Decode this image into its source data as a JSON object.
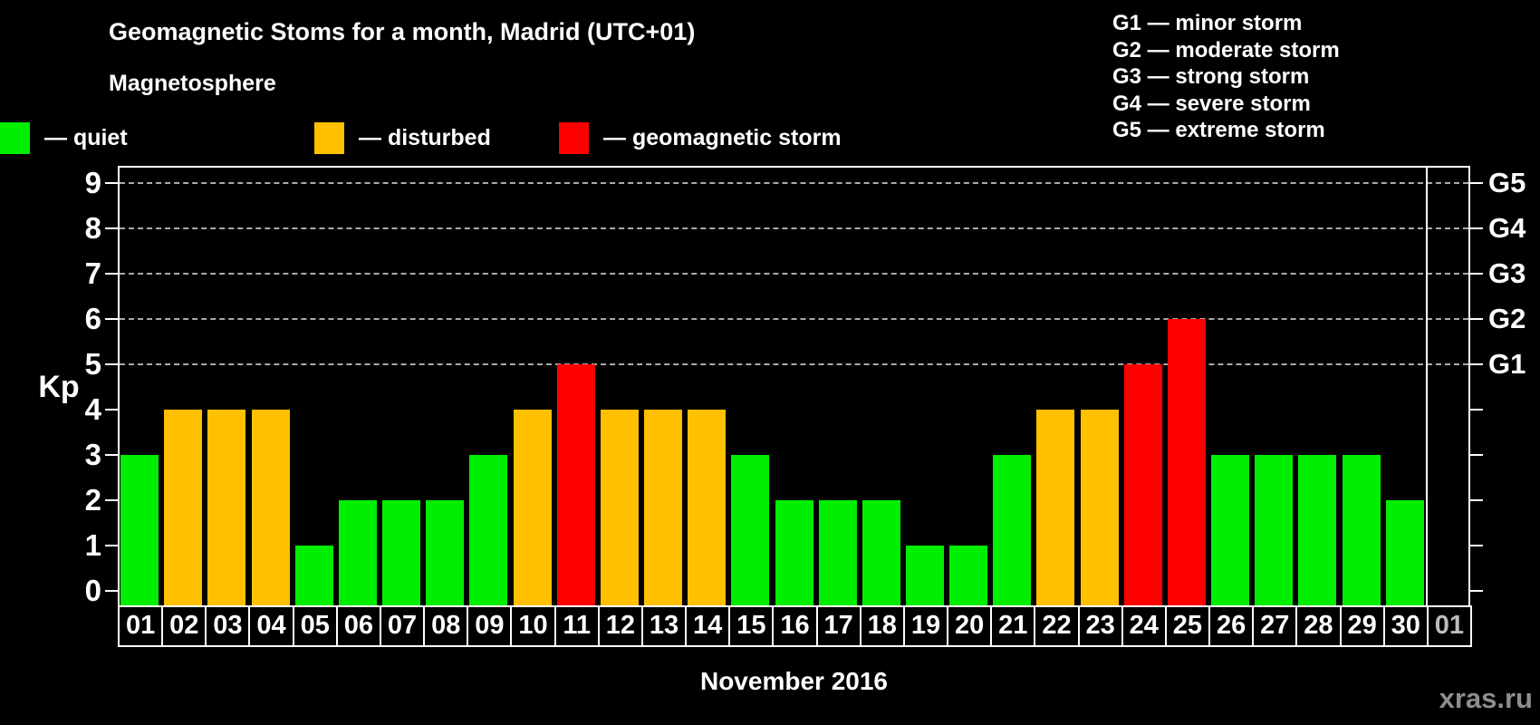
{
  "title": "Geomagnetic Stoms for a month, Madrid (UTC+01)",
  "legend": {
    "heading": "Magnetosphere",
    "items": [
      {
        "label": "— quiet",
        "color": "#00ee00"
      },
      {
        "label": "— disturbed",
        "color": "#ffc000"
      },
      {
        "label": "— geomagnetic storm",
        "color": "#ff0000"
      }
    ]
  },
  "g_legend": [
    "G1 — minor storm",
    "G2 — moderate storm",
    "G3 — strong storm",
    "G4 — severe storm",
    "G5 — extreme storm"
  ],
  "watermark": "xras.ru",
  "chart_data": {
    "type": "bar",
    "title": "Geomagnetic Stoms for a month, Madrid (UTC+01)",
    "xlabel": "November 2016",
    "ylabel": "Kp",
    "ylim": [
      0,
      9.36
    ],
    "y_ticks": [
      "0",
      "1",
      "2",
      "3",
      "4",
      "5",
      "6",
      "7",
      "8",
      "9"
    ],
    "grid": {
      "style": "dashed",
      "levels": [
        5,
        6,
        7,
        8,
        9
      ],
      "color": "#aaaaaa"
    },
    "right_axis": {
      "labels": [
        "G1",
        "G2",
        "G3",
        "G4",
        "G5"
      ],
      "levels": [
        5,
        6,
        7,
        8,
        9
      ]
    },
    "legend_position": "top-left",
    "categories": [
      "01",
      "02",
      "03",
      "04",
      "05",
      "06",
      "07",
      "08",
      "09",
      "10",
      "11",
      "12",
      "13",
      "14",
      "15",
      "16",
      "17",
      "18",
      "19",
      "20",
      "21",
      "22",
      "23",
      "24",
      "25",
      "26",
      "27",
      "28",
      "29",
      "30",
      "01"
    ],
    "month_day_count": 30,
    "values": [
      3,
      4,
      4,
      4,
      1,
      2,
      2,
      2,
      3,
      4,
      5,
      4,
      4,
      4,
      3,
      2,
      2,
      2,
      1,
      1,
      3,
      4,
      4,
      5,
      6,
      3,
      3,
      3,
      3,
      2,
      null
    ],
    "statuses": [
      "quiet",
      "disturbed",
      "disturbed",
      "disturbed",
      "quiet",
      "quiet",
      "quiet",
      "quiet",
      "quiet",
      "disturbed",
      "storm",
      "disturbed",
      "disturbed",
      "disturbed",
      "quiet",
      "quiet",
      "quiet",
      "quiet",
      "quiet",
      "quiet",
      "quiet",
      "disturbed",
      "disturbed",
      "storm",
      "storm",
      "quiet",
      "quiet",
      "quiet",
      "quiet",
      "quiet",
      null
    ],
    "status_colors": {
      "quiet": "#00ee00",
      "disturbed": "#ffc000",
      "storm": "#ff0000"
    },
    "axis_color": "#ffffff",
    "dim_label_color": "#bdbdbd"
  }
}
